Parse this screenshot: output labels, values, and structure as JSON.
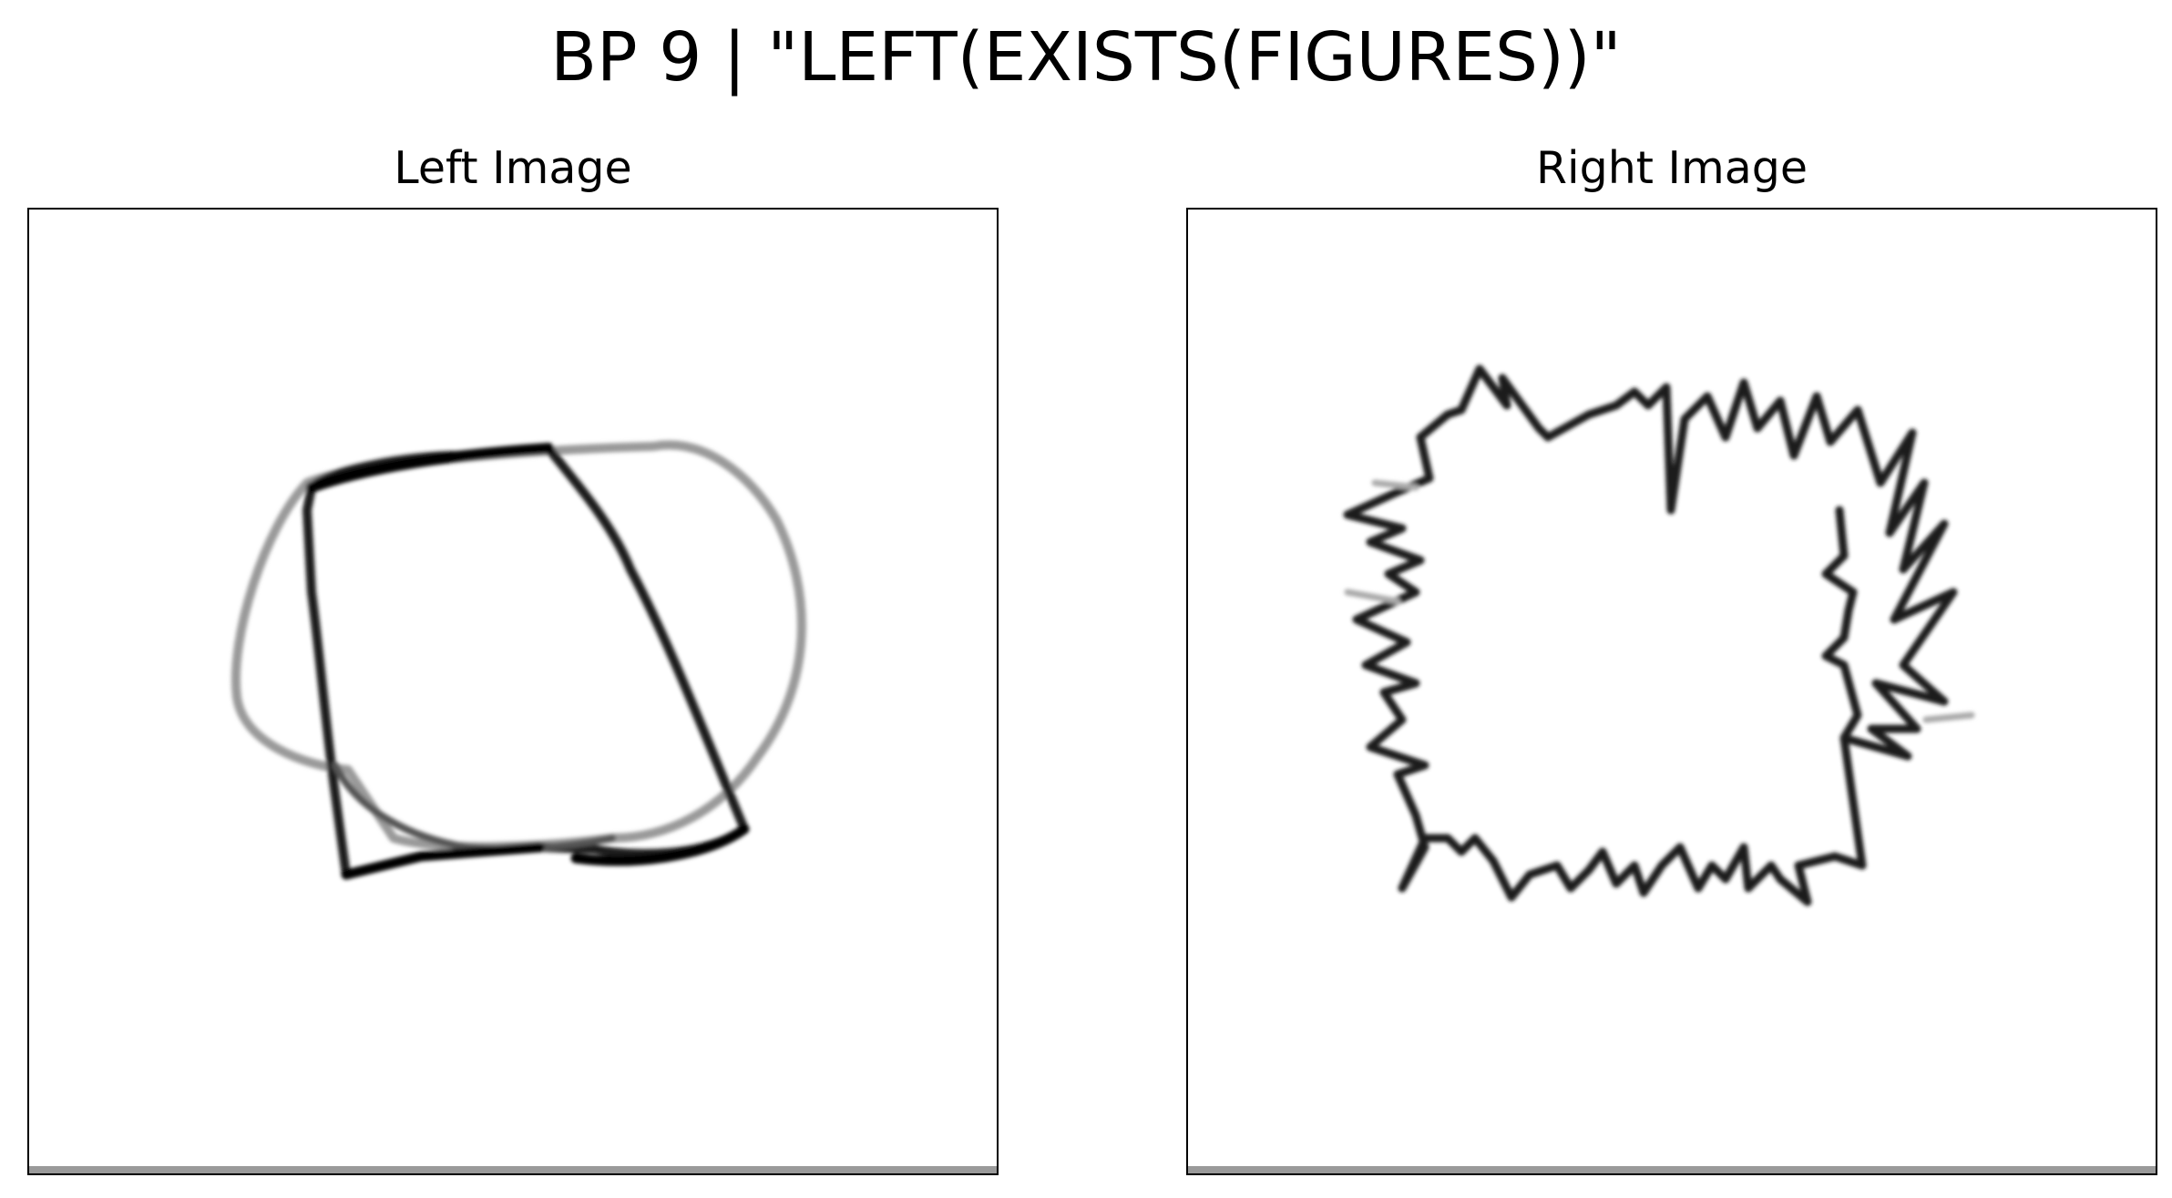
{
  "figure": {
    "title": "BP 9 | \"LEFT(EXISTS(FIGURES))\""
  },
  "panels": [
    {
      "title": "Left Image"
    },
    {
      "title": "Right Image"
    }
  ],
  "colors": {
    "background": "#ffffff",
    "stroke": "#000000",
    "border": "#000000"
  }
}
